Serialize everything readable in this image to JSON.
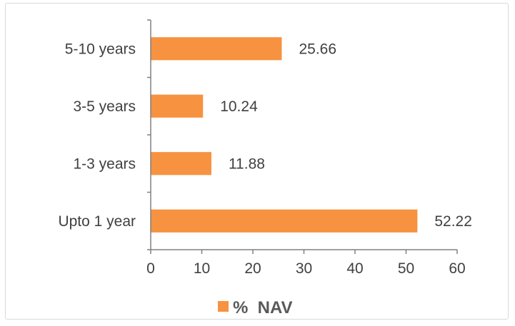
{
  "chart_data": {
    "type": "bar",
    "orientation": "horizontal",
    "categories": [
      "5-10 years",
      "3-5 years",
      "1-3 years",
      "Upto 1 year"
    ],
    "series": [
      {
        "name": "%  NAV",
        "values": [
          25.66,
          10.24,
          11.88,
          52.22
        ]
      }
    ],
    "data_labels": [
      "25.66",
      "10.24",
      "11.88",
      "52.22"
    ],
    "x_ticks": [
      "0",
      "10",
      "20",
      "30",
      "40",
      "50",
      "60"
    ],
    "xlim": [
      0,
      60
    ],
    "grid": false,
    "legend": "bottom",
    "title": "",
    "xlabel": "",
    "ylabel": "",
    "colors": {
      "bar": "#f79240",
      "axis": "#808080",
      "text": "#404040"
    }
  }
}
